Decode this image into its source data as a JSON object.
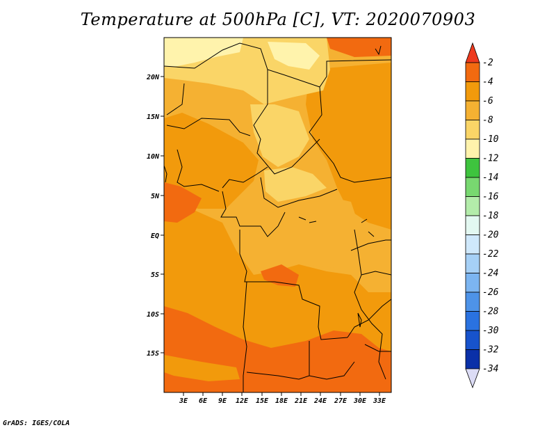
{
  "title": "Temperature at 500hPa [C], VT: 2020070903",
  "credit": "GrADS: IGES/COLA",
  "map": {
    "lat_ticks": [
      "20N",
      "15N",
      "10N",
      "5N",
      "EQ",
      "5S",
      "10S",
      "15S"
    ],
    "lon_ticks": [
      "3E",
      "6E",
      "9E",
      "12E",
      "15E",
      "18E",
      "21E",
      "24E",
      "27E",
      "30E",
      "33E"
    ]
  },
  "colorbar": {
    "levels": [
      "-2",
      "-4",
      "-6",
      "-8",
      "-10",
      "-12",
      "-14",
      "-16",
      "-18",
      "-20",
      "-22",
      "-24",
      "-26",
      "-28",
      "-30",
      "-32",
      "-34"
    ],
    "colors": {
      "top_arrow": "#ee3a1e",
      "bands": [
        "#f26a10",
        "#f29a0c",
        "#f5b132",
        "#fad567",
        "#fff3ac",
        "#3ec43e",
        "#78d870",
        "#b3ecaa",
        "#e3f8f1",
        "#cfe8fb",
        "#a6d0f6",
        "#7cb5f1",
        "#4e93e8",
        "#2a72e0",
        "#1753cc",
        "#0a30a8"
      ],
      "bottom_arrow": "#dcdcf5"
    }
  },
  "chart_data": {
    "type": "heatmap",
    "title": "Temperature at 500hPa [C], VT: 2020070903",
    "variable": "Temperature at 500hPa",
    "units": "C",
    "valid_time": "2020070903",
    "lon_range": [
      0,
      35
    ],
    "lat_range": [
      -20,
      25
    ],
    "color_scale_levels": [
      -2,
      -4,
      -6,
      -8,
      -10,
      -12,
      -14,
      -16,
      -18,
      -20,
      -22,
      -24,
      -26,
      -28,
      -30,
      -32,
      -34
    ],
    "dominant_values": {
      "sahara_north": "-8 to -10",
      "sahel_central": "-6 to -8",
      "central_africa": "-6",
      "southwest": "-4 to -2"
    }
  }
}
